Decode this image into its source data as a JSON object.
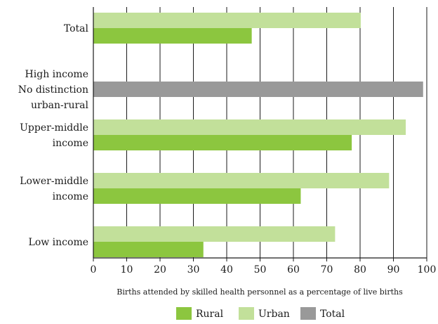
{
  "colors": {
    "rural": "#8cc63f",
    "urban": "#c2e09a",
    "total": "#999999",
    "gridline": "#1a1a1a",
    "axis": "#1a1a1a"
  },
  "chart_data": {
    "type": "bar",
    "orientation": "horizontal",
    "title": "",
    "xlabel": "Births attended by skilled health personnel as a percentage of live births",
    "ylabel": "",
    "xlim": [
      0,
      100
    ],
    "xticks": [
      0,
      10,
      20,
      30,
      40,
      50,
      60,
      70,
      80,
      90,
      100
    ],
    "grid": "vertical",
    "legend_position": "bottom",
    "categories": [
      {
        "label_lines": [
          "Total"
        ],
        "rural": 47.5,
        "urban": 80.2,
        "total": null
      },
      {
        "label_lines": [
          "High income",
          "No distinction",
          "urban-rural"
        ],
        "rural": null,
        "urban": null,
        "total": 98.9
      },
      {
        "label_lines": [
          "Upper-middle",
          "income"
        ],
        "rural": 77.5,
        "urban": 93.7,
        "total": null
      },
      {
        "label_lines": [
          "Lower-middle",
          "income"
        ],
        "rural": 62.2,
        "urban": 88.7,
        "total": null
      },
      {
        "label_lines": [
          "Low income"
        ],
        "rural": 33.0,
        "urban": 72.5,
        "total": null
      }
    ],
    "series": [
      {
        "key": "rural",
        "name": "Rural",
        "color": "#8cc63f"
      },
      {
        "key": "urban",
        "name": "Urban",
        "color": "#c2e09a"
      },
      {
        "key": "total",
        "name": "Total",
        "color": "#999999"
      }
    ]
  }
}
